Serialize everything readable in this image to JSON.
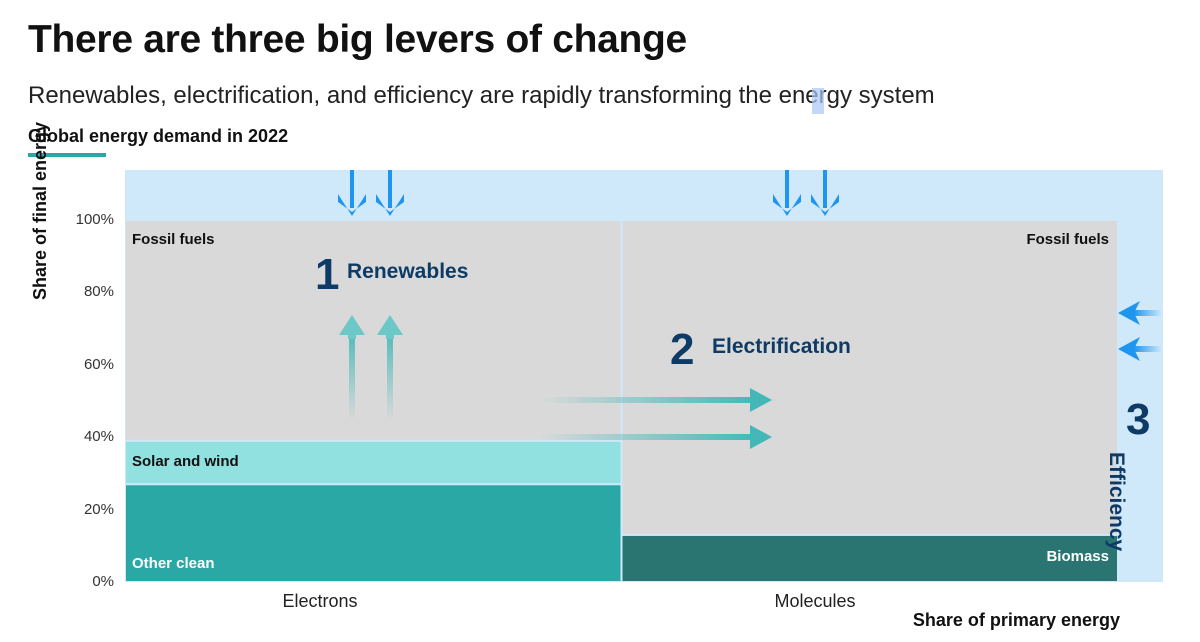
{
  "header": {
    "title": "There are three big levers of change",
    "subtitle": "Renewables, electrification, and efficiency are rapidly transforming the energy system",
    "section_label": "Global energy demand in 2022"
  },
  "chart_data": {
    "type": "marimekko",
    "ylabel": "Share of final energy",
    "xlabel": "Share of primary energy",
    "yticks": [
      "0%",
      "20%",
      "40%",
      "60%",
      "80%",
      "100%"
    ],
    "ylim": [
      0,
      100
    ],
    "categories": [
      "Electrons",
      "Molecules"
    ],
    "columns": [
      {
        "name": "Electrons",
        "share": 50,
        "segments": [
          {
            "name": "Other clean",
            "value": 27
          },
          {
            "name": "Solar and wind",
            "value": 12
          },
          {
            "name": "Fossil fuels",
            "value": 61
          }
        ]
      },
      {
        "name": "Molecules",
        "share": 50,
        "segments": [
          {
            "name": "Biomass",
            "value": 13
          },
          {
            "name": "Fossil fuels",
            "value": 87
          }
        ]
      }
    ],
    "levers": [
      {
        "number": "1",
        "name": "Renewables"
      },
      {
        "number": "2",
        "name": "Electrification"
      },
      {
        "number": "3",
        "name": "Efficiency"
      }
    ],
    "colors": {
      "fossil": "#d9d9d9",
      "solar_wind": "#91e1e0",
      "other_clean": "#2aa8a5",
      "biomass": "#2a7571",
      "efficiency_band": "#cfe9fb",
      "arrow_blue": "#1e96f0",
      "arrow_teal": "#44b8b8",
      "lever_text": "#0d3b66"
    }
  }
}
